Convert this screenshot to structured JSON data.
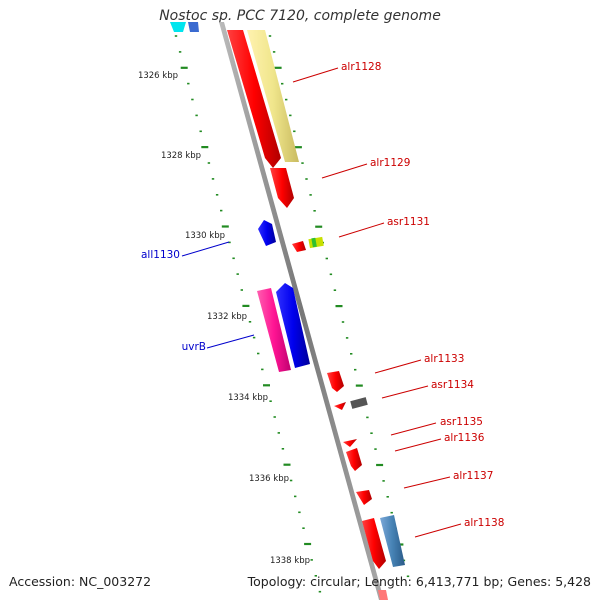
{
  "title": "Nostoc sp. PCC 7120, complete genome",
  "accession_text": "Accession: NC_003272",
  "summary_text": "Topology: circular; Length: 6,413,771 bp; Genes: 5,428",
  "tick_labels": [
    "1326 kbp",
    "1328 kbp",
    "1330 kbp",
    "1332 kbp",
    "1334 kbp",
    "1336 kbp",
    "1338 kbp"
  ],
  "genes": [
    {
      "name": "alr1128",
      "strand": "+",
      "color": "#ff0000"
    },
    {
      "name": "alr1129",
      "strand": "+",
      "color": "#ff0000"
    },
    {
      "name": "all1130",
      "strand": "-",
      "color": "#0000ee"
    },
    {
      "name": "asr1131",
      "strand": "+",
      "color": "#ff0000"
    },
    {
      "name": "uvrB",
      "strand": "-",
      "color": "#0000ee"
    },
    {
      "name": "alr1133",
      "strand": "+",
      "color": "#ff0000"
    },
    {
      "name": "asr1134",
      "strand": "+",
      "color": "#ff0000"
    },
    {
      "name": "asr1135",
      "strand": "+",
      "color": "#ff0000"
    },
    {
      "name": "alr1136",
      "strand": "+",
      "color": "#ff0000"
    },
    {
      "name": "alr1137",
      "strand": "+",
      "color": "#ff0000"
    },
    {
      "name": "alr1138",
      "strand": "+",
      "color": "#ff0000"
    }
  ],
  "colors": {
    "forward_gene": "#ff0000",
    "reverse_gene": "#0000ee",
    "pseudo_pink": "#ff1493",
    "cog_yellow": "#f0e68c",
    "cog_blue": "#4682b4",
    "cog_grey": "#555555",
    "cog_cyan": "#00e5ee",
    "backbone": "#888888",
    "tick_green": "#228b22"
  }
}
